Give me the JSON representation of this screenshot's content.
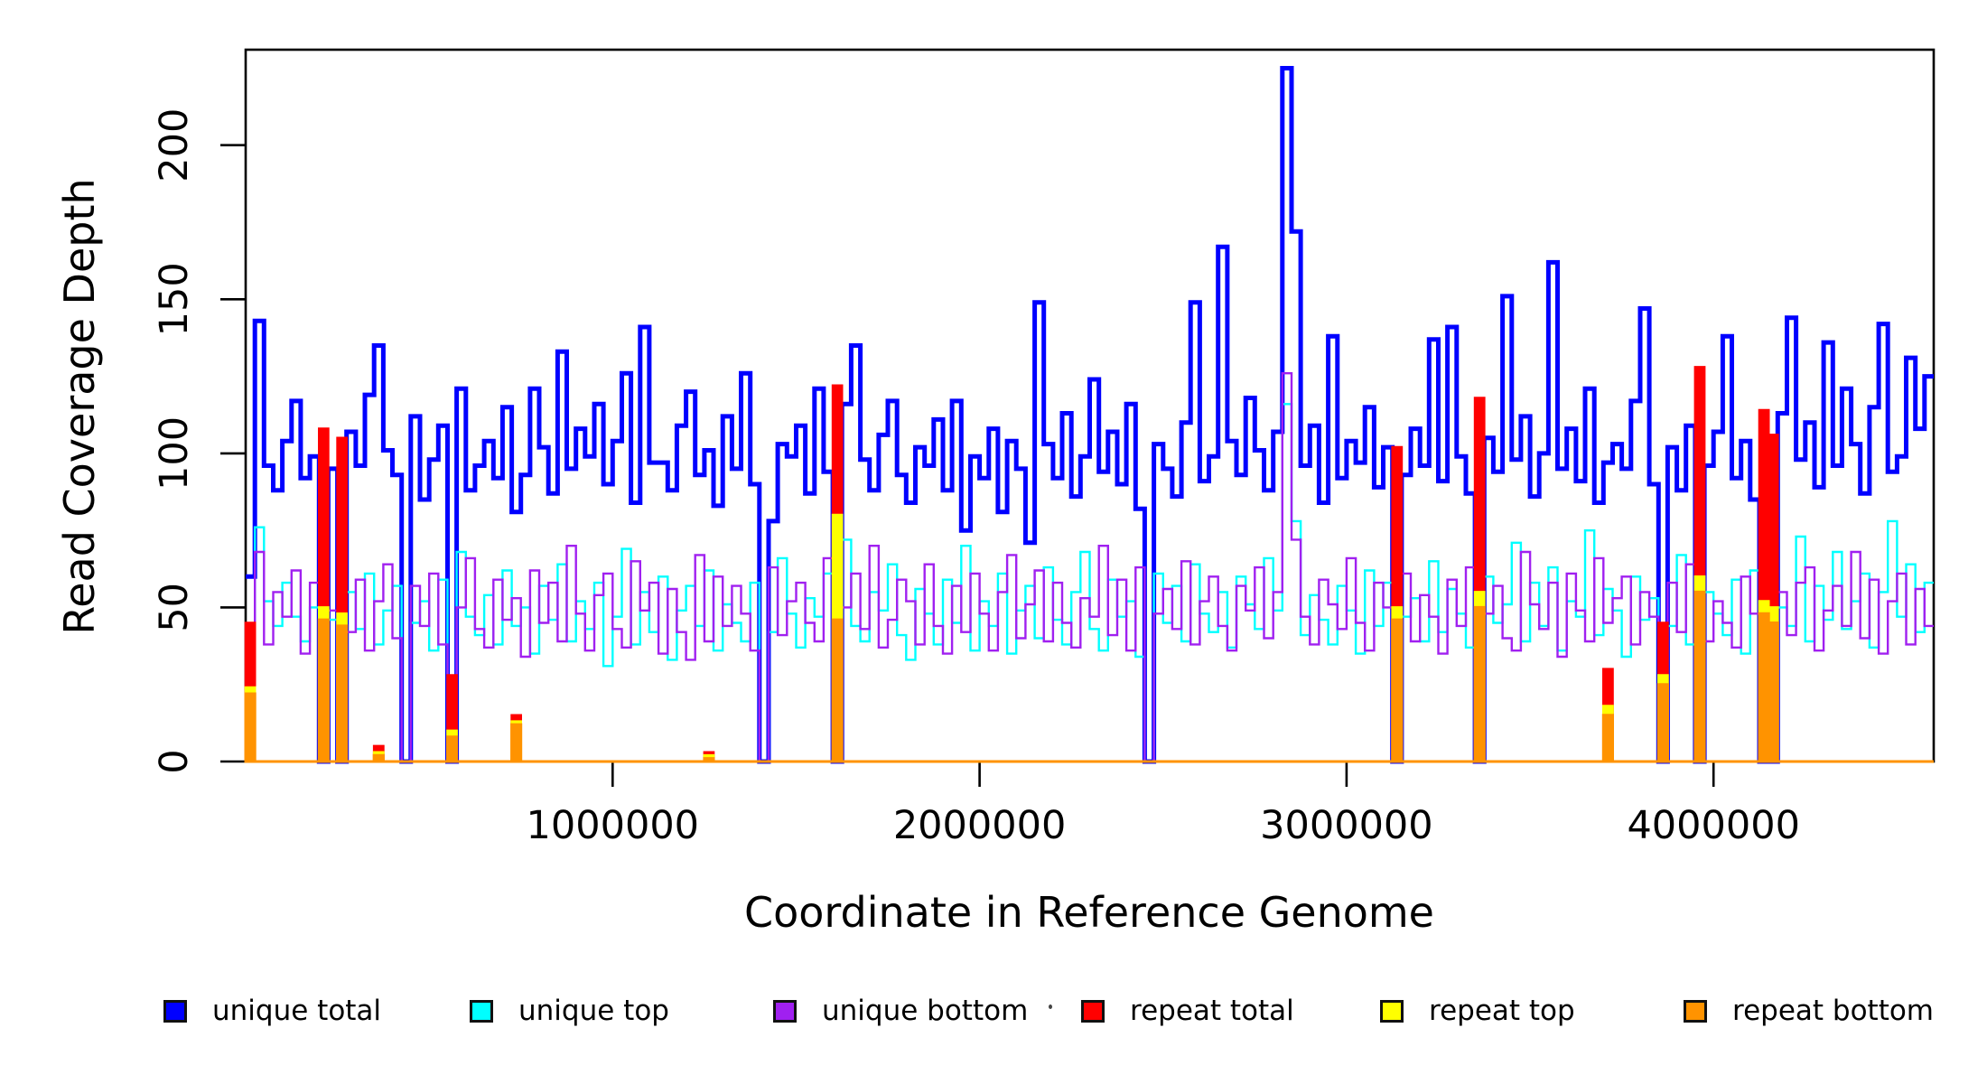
{
  "figure": {
    "background": "#FFFFFF"
  },
  "chart_data": {
    "type": "line",
    "subtype": "step-coverage",
    "title": "",
    "xlabel": "Coordinate in Reference Genome",
    "ylabel": "Read Coverage Depth",
    "xlim": [
      0,
      4600000
    ],
    "ylim": [
      0,
      231
    ],
    "x_ticks": [
      1000000,
      2000000,
      3000000,
      4000000
    ],
    "x_tick_labels": [
      "1000000",
      "2000000",
      "3000000",
      "4000000"
    ],
    "y_ticks": [
      0,
      50,
      100,
      150,
      200
    ],
    "y_tick_labels": [
      "0",
      "50",
      "100",
      "150",
      "200"
    ],
    "grid": false,
    "legend_position": "bottom",
    "bin_size": 25000,
    "axis_color": "#000000",
    "series": [
      {
        "name": "unique total",
        "color": "#0000FF",
        "line_width": 5,
        "style": "step-line",
        "values": [
          60,
          143,
          96,
          88,
          104,
          117,
          92,
          99,
          0,
          95,
          0,
          107,
          96,
          119,
          135,
          101,
          93,
          0,
          112,
          85,
          98,
          109,
          0,
          121,
          88,
          96,
          104,
          92,
          115,
          81,
          93,
          121,
          102,
          87,
          133,
          95,
          108,
          99,
          116,
          90,
          104,
          126,
          84,
          141,
          97,
          97,
          88,
          109,
          120,
          93,
          101,
          83,
          112,
          95,
          126,
          90,
          0,
          78,
          103,
          99,
          109,
          87,
          121,
          94,
          0,
          116,
          135,
          98,
          88,
          106,
          117,
          93,
          84,
          102,
          96,
          111,
          88,
          117,
          75,
          99,
          92,
          108,
          81,
          104,
          95,
          71,
          149,
          103,
          92,
          113,
          86,
          99,
          124,
          94,
          107,
          90,
          116,
          82,
          0,
          103,
          95,
          86,
          110,
          149,
          91,
          99,
          167,
          104,
          93,
          118,
          101,
          88,
          107,
          225,
          172,
          96,
          109,
          84,
          138,
          92,
          104,
          97,
          115,
          89,
          102,
          0,
          93,
          108,
          96,
          137,
          91,
          141,
          99,
          87,
          0,
          105,
          94,
          151,
          98,
          112,
          86,
          100,
          162,
          95,
          108,
          91,
          121,
          84,
          97,
          103,
          95,
          117,
          147,
          90,
          0,
          102,
          88,
          109,
          0,
          96,
          107,
          138,
          92,
          104,
          85,
          0,
          0,
          113,
          144,
          98,
          110,
          89,
          136,
          96,
          121,
          103,
          87,
          115,
          142,
          94,
          99,
          131,
          108,
          125
        ]
      },
      {
        "name": "unique top",
        "color": "#00FFFF",
        "line_width": 2.4,
        "style": "step-line",
        "values": [
          40,
          76,
          52,
          44,
          58,
          47,
          39,
          50,
          0,
          46,
          0,
          55,
          43,
          61,
          38,
          49,
          57,
          0,
          45,
          52,
          36,
          59,
          0,
          68,
          47,
          41,
          54,
          38,
          62,
          44,
          50,
          35,
          57,
          46,
          64,
          39,
          52,
          43,
          58,
          31,
          47,
          69,
          38,
          55,
          42,
          60,
          33,
          49,
          57,
          44,
          62,
          36,
          51,
          45,
          39,
          58,
          0,
          42,
          66,
          48,
          37,
          53,
          47,
          61,
          0,
          72,
          44,
          39,
          55,
          49,
          64,
          41,
          33,
          56,
          48,
          38,
          59,
          45,
          70,
          36,
          52,
          44,
          61,
          35,
          49,
          57,
          40,
          63,
          46,
          38,
          55,
          68,
          43,
          36,
          59,
          47,
          52,
          34,
          0,
          61,
          45,
          57,
          39,
          64,
          48,
          42,
          55,
          37,
          60,
          51,
          43,
          66,
          49,
          116,
          78,
          41,
          54,
          46,
          38,
          57,
          49,
          35,
          62,
          44,
          58,
          0,
          47,
          53,
          39,
          65,
          42,
          56,
          48,
          37,
          0,
          60,
          45,
          51,
          71,
          39,
          58,
          44,
          63,
          36,
          52,
          47,
          75,
          41,
          56,
          49,
          34,
          60,
          46,
          53,
          0,
          44,
          67,
          38,
          0,
          55,
          48,
          41,
          59,
          35,
          62,
          0,
          0,
          50,
          44,
          73,
          39,
          57,
          46,
          68,
          43,
          52,
          61,
          37,
          55,
          78,
          47,
          64,
          42,
          58
        ]
      },
      {
        "name": "unique bottom",
        "color": "#A020F0",
        "line_width": 2.4,
        "style": "step-line",
        "values": [
          44,
          68,
          38,
          55,
          47,
          62,
          35,
          58,
          0,
          49,
          0,
          42,
          59,
          36,
          52,
          64,
          40,
          0,
          57,
          44,
          61,
          38,
          0,
          50,
          66,
          43,
          37,
          59,
          46,
          53,
          34,
          62,
          45,
          58,
          39,
          70,
          48,
          36,
          54,
          61,
          43,
          37,
          65,
          49,
          58,
          35,
          56,
          42,
          33,
          67,
          39,
          60,
          44,
          57,
          48,
          36,
          0,
          63,
          41,
          52,
          58,
          45,
          39,
          66,
          0,
          50,
          61,
          43,
          70,
          37,
          46,
          59,
          52,
          38,
          64,
          44,
          35,
          57,
          42,
          61,
          48,
          36,
          55,
          67,
          40,
          51,
          62,
          39,
          58,
          45,
          37,
          53,
          47,
          70,
          41,
          59,
          36,
          63,
          0,
          48,
          56,
          43,
          65,
          38,
          52,
          60,
          44,
          36,
          57,
          49,
          63,
          40,
          55,
          126,
          72,
          47,
          38,
          59,
          51,
          43,
          66,
          45,
          36,
          58,
          50,
          0,
          61,
          39,
          54,
          47,
          35,
          59,
          44,
          63,
          0,
          48,
          57,
          40,
          36,
          68,
          51,
          43,
          58,
          34,
          61,
          49,
          39,
          66,
          45,
          53,
          60,
          38,
          55,
          47,
          0,
          58,
          42,
          64,
          0,
          39,
          52,
          45,
          37,
          60,
          48,
          0,
          0,
          55,
          41,
          58,
          63,
          36,
          49,
          57,
          44,
          68,
          40,
          59,
          35,
          52,
          61,
          38,
          56,
          44
        ]
      },
      {
        "name": "repeat total",
        "color": "#FF0000",
        "line_width": 2.6,
        "style": "step-filled",
        "values": [
          45,
          0,
          0,
          0,
          0,
          0,
          0,
          0,
          108,
          0,
          105,
          0,
          0,
          0,
          5,
          0,
          0,
          0,
          0,
          0,
          0,
          0,
          28,
          0,
          0,
          0,
          0,
          0,
          0,
          15,
          0,
          0,
          0,
          0,
          0,
          0,
          0,
          0,
          0,
          0,
          0,
          0,
          0,
          0,
          0,
          0,
          0,
          0,
          0,
          0,
          3,
          0,
          0,
          0,
          0,
          0,
          0,
          0,
          0,
          0,
          0,
          0,
          0,
          0,
          122,
          0,
          0,
          0,
          0,
          0,
          0,
          0,
          0,
          0,
          0,
          0,
          0,
          0,
          0,
          0,
          0,
          0,
          0,
          0,
          0,
          0,
          0,
          0,
          0,
          0,
          0,
          0,
          0,
          0,
          0,
          0,
          0,
          0,
          0,
          0,
          0,
          0,
          0,
          0,
          0,
          0,
          0,
          0,
          0,
          0,
          0,
          0,
          0,
          0,
          0,
          0,
          0,
          0,
          0,
          0,
          0,
          0,
          0,
          0,
          0,
          102,
          0,
          0,
          0,
          0,
          0,
          0,
          0,
          0,
          118,
          0,
          0,
          0,
          0,
          0,
          0,
          0,
          0,
          0,
          0,
          0,
          0,
          0,
          30,
          0,
          0,
          0,
          0,
          0,
          45,
          0,
          0,
          0,
          128,
          0,
          0,
          0,
          0,
          0,
          0,
          114,
          106,
          0,
          0,
          0,
          0,
          0,
          0,
          0,
          0,
          0,
          0,
          0,
          0,
          0,
          0,
          0,
          0,
          0
        ]
      },
      {
        "name": "repeat top",
        "color": "#FFFF00",
        "line_width": 2.6,
        "style": "step-filled",
        "values": [
          24,
          0,
          0,
          0,
          0,
          0,
          0,
          0,
          50,
          0,
          48,
          0,
          0,
          0,
          3,
          0,
          0,
          0,
          0,
          0,
          0,
          0,
          10,
          0,
          0,
          0,
          0,
          0,
          0,
          13,
          0,
          0,
          0,
          0,
          0,
          0,
          0,
          0,
          0,
          0,
          0,
          0,
          0,
          0,
          0,
          0,
          0,
          0,
          0,
          0,
          2,
          0,
          0,
          0,
          0,
          0,
          0,
          0,
          0,
          0,
          0,
          0,
          0,
          0,
          80,
          0,
          0,
          0,
          0,
          0,
          0,
          0,
          0,
          0,
          0,
          0,
          0,
          0,
          0,
          0,
          0,
          0,
          0,
          0,
          0,
          0,
          0,
          0,
          0,
          0,
          0,
          0,
          0,
          0,
          0,
          0,
          0,
          0,
          0,
          0,
          0,
          0,
          0,
          0,
          0,
          0,
          0,
          0,
          0,
          0,
          0,
          0,
          0,
          0,
          0,
          0,
          0,
          0,
          0,
          0,
          0,
          0,
          0,
          0,
          0,
          50,
          0,
          0,
          0,
          0,
          0,
          0,
          0,
          0,
          55,
          0,
          0,
          0,
          0,
          0,
          0,
          0,
          0,
          0,
          0,
          0,
          0,
          0,
          18,
          0,
          0,
          0,
          0,
          0,
          28,
          0,
          0,
          0,
          60,
          0,
          0,
          0,
          0,
          0,
          0,
          52,
          50,
          0,
          0,
          0,
          0,
          0,
          0,
          0,
          0,
          0,
          0,
          0,
          0,
          0,
          0,
          0,
          0,
          0
        ]
      },
      {
        "name": "repeat bottom",
        "color": "#FF9300",
        "line_width": 3,
        "style": "step-filled",
        "values": [
          22,
          0,
          0,
          0,
          0,
          0,
          0,
          0,
          46,
          0,
          44,
          0,
          0,
          0,
          2,
          0,
          0,
          0,
          0,
          0,
          0,
          0,
          8,
          0,
          0,
          0,
          0,
          0,
          0,
          12,
          0,
          0,
          0,
          0,
          0,
          0,
          0,
          0,
          0,
          0,
          0,
          0,
          0,
          0,
          0,
          0,
          0,
          0,
          0,
          0,
          1,
          0,
          0,
          0,
          0,
          0,
          0,
          0,
          0,
          0,
          0,
          0,
          0,
          0,
          46,
          0,
          0,
          0,
          0,
          0,
          0,
          0,
          0,
          0,
          0,
          0,
          0,
          0,
          0,
          0,
          0,
          0,
          0,
          0,
          0,
          0,
          0,
          0,
          0,
          0,
          0,
          0,
          0,
          0,
          0,
          0,
          0,
          0,
          0,
          0,
          0,
          0,
          0,
          0,
          0,
          0,
          0,
          0,
          0,
          0,
          0,
          0,
          0,
          0,
          0,
          0,
          0,
          0,
          0,
          0,
          0,
          0,
          0,
          0,
          0,
          46,
          0,
          0,
          0,
          0,
          0,
          0,
          0,
          0,
          50,
          0,
          0,
          0,
          0,
          0,
          0,
          0,
          0,
          0,
          0,
          0,
          0,
          0,
          15,
          0,
          0,
          0,
          0,
          0,
          25,
          0,
          0,
          0,
          55,
          0,
          0,
          0,
          0,
          0,
          0,
          48,
          45,
          0,
          0,
          0,
          0,
          0,
          0,
          0,
          0,
          0,
          0,
          0,
          0,
          0,
          0,
          0,
          0,
          0
        ]
      }
    ]
  },
  "legend": {
    "items": [
      {
        "label": "unique total",
        "color": "#0000FF"
      },
      {
        "label": "unique top",
        "color": "#00FFFF"
      },
      {
        "label": "unique bottom",
        "color": "#A020F0"
      },
      {
        "label": "repeat total",
        "color": "#FF0000"
      },
      {
        "label": "repeat top",
        "color": "#FFFF00"
      },
      {
        "label": "repeat bottom",
        "color": "#FF9300"
      }
    ]
  },
  "artifacts": {
    "stray_dot": "·"
  }
}
